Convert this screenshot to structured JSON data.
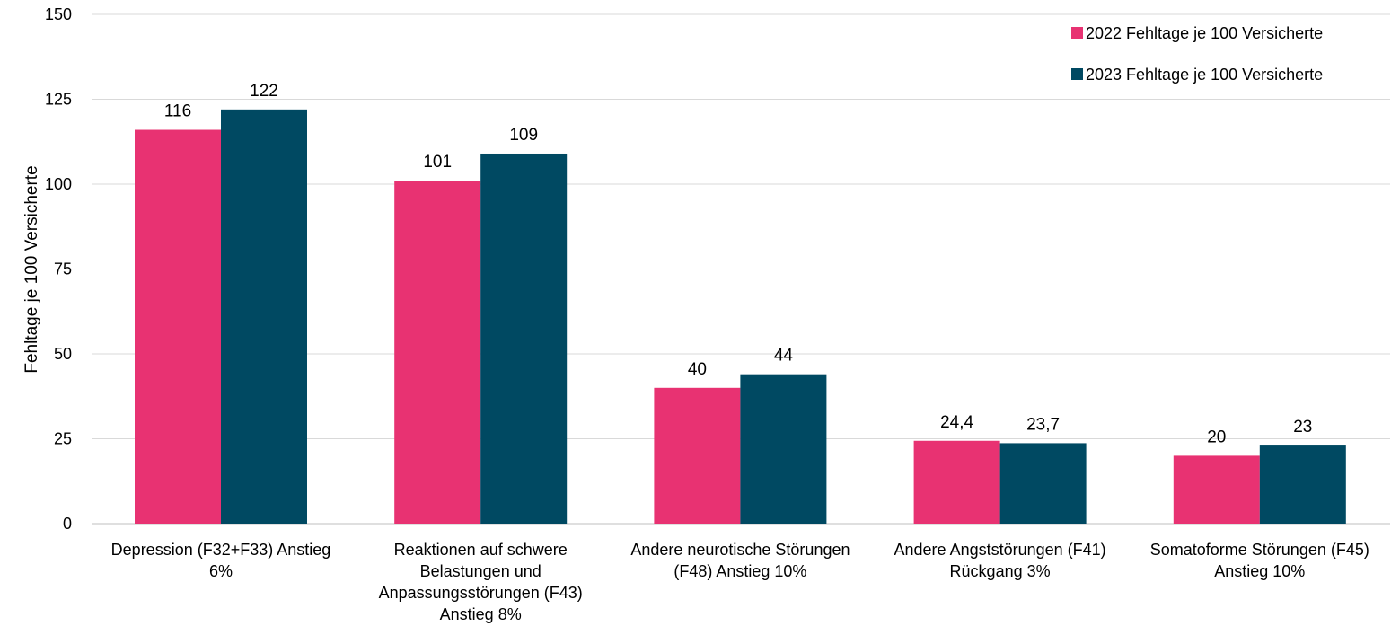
{
  "chart_data": {
    "type": "bar",
    "title": "",
    "xlabel": "",
    "ylabel": "Fehltage je 100 Versicherte",
    "ylim": [
      0,
      150
    ],
    "yticks": [
      0,
      25,
      50,
      75,
      100,
      125,
      150
    ],
    "grid": true,
    "legend_position": "top-right",
    "categories": [
      [
        "Depression (F32+F33) Anstieg",
        "6%"
      ],
      [
        "Reaktionen auf schwere",
        "Belastungen und",
        "Anpassungsstörungen (F43)",
        "Anstieg 8%"
      ],
      [
        "Andere neurotische Störungen",
        "(F48) Anstieg 10%"
      ],
      [
        "Andere Angststörungen (F41)",
        "Rückgang 3%"
      ],
      [
        "Somatoforme Störungen (F45)",
        "Anstieg 10%"
      ]
    ],
    "series": [
      {
        "name": "2022 Fehltage je 100 Versicherte",
        "color": "#e83272",
        "values": [
          116,
          101,
          40,
          24.4,
          20
        ],
        "labels": [
          "116",
          "101",
          "40",
          "24,4",
          "20"
        ]
      },
      {
        "name": "2023 Fehltage je 100 Versicherte",
        "color": "#004962",
        "values": [
          122,
          109,
          44,
          23.7,
          23
        ],
        "labels": [
          "122",
          "109",
          "44",
          "23,7",
          "23"
        ]
      }
    ]
  }
}
